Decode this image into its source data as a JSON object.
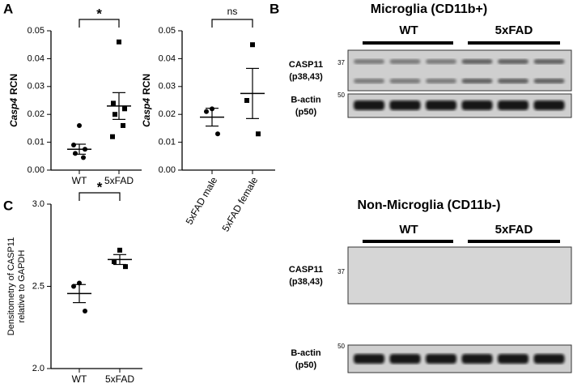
{
  "panel_labels": [
    "A",
    "B",
    "C"
  ],
  "chart_data": [
    {
      "type": "dot-plot",
      "ylabel_gene": "Casp4",
      "ylabel": "RCN",
      "categories": [
        "WT",
        "5xFAD"
      ],
      "points": [
        [
          0.016,
          0.009,
          0.0075,
          0.006,
          0.0045
        ],
        [
          0.046,
          0.024,
          0.022,
          0.02,
          0.016,
          0.012
        ]
      ],
      "means": [
        0.0075,
        0.023
      ],
      "sems": [
        0.0018,
        0.0048
      ],
      "color": "#000000",
      "ylim": [
        0,
        0.05
      ],
      "yticks": [
        {
          "value": 0,
          "label": "0.00"
        },
        {
          "value": 0.01,
          "label": "0.01"
        },
        {
          "value": 0.02,
          "label": "0.02"
        },
        {
          "value": 0.03,
          "label": "0.03"
        },
        {
          "value": 0.04,
          "label": "0.04"
        },
        {
          "value": 0.05,
          "label": "0.05"
        }
      ],
      "significance": "*"
    },
    {
      "type": "dot-plot",
      "ylabel_gene": "Casp4",
      "ylabel": "RCN",
      "categories": [
        "5xFAD male",
        "5xFAD female"
      ],
      "points": [
        [
          0.022,
          0.021,
          0.013
        ],
        [
          0.045,
          0.025,
          0.013
        ]
      ],
      "means": [
        0.019,
        0.0275
      ],
      "sems": [
        0.0032,
        0.009
      ],
      "color": "#000000",
      "ylim": [
        0,
        0.05
      ],
      "yticks": [
        {
          "value": 0,
          "label": "0.00"
        },
        {
          "value": 0.01,
          "label": "0.01"
        },
        {
          "value": 0.02,
          "label": "0.02"
        },
        {
          "value": 0.03,
          "label": "0.03"
        },
        {
          "value": 0.04,
          "label": "0.04"
        },
        {
          "value": 0.05,
          "label": "0.05"
        }
      ],
      "significance": "ns"
    },
    {
      "type": "dot-plot",
      "ylabel_lines": [
        "Densitometry of CASP11",
        "relative to GAPDH"
      ],
      "categories": [
        "WT",
        "5xFAD"
      ],
      "points": [
        [
          2.52,
          2.5,
          2.35
        ],
        [
          2.72,
          2.65,
          2.62
        ]
      ],
      "means": [
        2.456,
        2.663
      ],
      "sems": [
        0.055,
        0.03
      ],
      "color": "#000000",
      "ylim": [
        2,
        3
      ],
      "yticks": [
        {
          "value": 2,
          "label": "2.0"
        },
        {
          "value": 2.5,
          "label": "2.5"
        },
        {
          "value": 3,
          "label": "3.0"
        }
      ],
      "significance": "*"
    }
  ],
  "blots": [
    {
      "title": "Microglia (CD11b+)",
      "groups": [
        "WT",
        "5xFAD"
      ],
      "rows": [
        [
          "CASP11",
          "(p38,43)"
        ],
        [
          "B-actin",
          "(p50)"
        ]
      ],
      "markers": [
        "37",
        "50"
      ]
    },
    {
      "title": "Non-Microglia (CD11b-)",
      "groups": [
        "WT",
        "5xFAD"
      ],
      "rows": [
        [
          "CASP11",
          "(p38,43)"
        ],
        [
          "B-actin",
          "(p50)"
        ]
      ],
      "markers": [
        "37",
        "50"
      ]
    }
  ]
}
